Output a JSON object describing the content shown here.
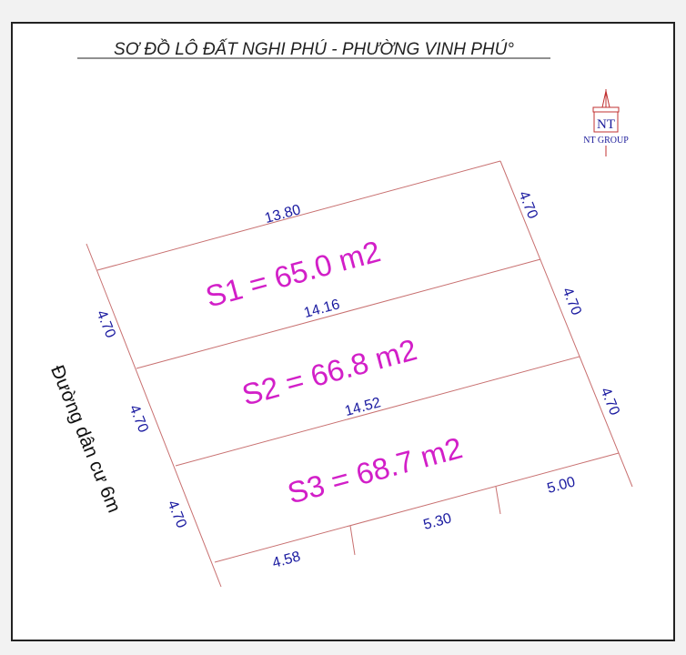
{
  "title": "SƠ ĐỒ LÔ ĐẤT NGHI PHÚ - PHƯỜNG VINH PHÚ°",
  "logo": {
    "mark": "NT",
    "name": "NT GROUP"
  },
  "road_label": "Đường dân cư 6m",
  "lots": [
    {
      "label": "S1 = 65.0 m2"
    },
    {
      "label": "S2 = 66.8 m2"
    },
    {
      "label": "S3 = 68.7 m2"
    }
  ],
  "dimensions": {
    "top": "13.80",
    "s1_s2": "14.16",
    "s2_s3": "14.52",
    "left": [
      "4.70",
      "4.70",
      "4.70"
    ],
    "right": [
      "4.70",
      "4.70",
      "4.70"
    ],
    "bottom": [
      "4.58",
      "5.30",
      "5.00"
    ]
  },
  "colors": {
    "lines": "#c87070",
    "dimensions": "#1a1aa0",
    "areas": "#d21fc8"
  }
}
